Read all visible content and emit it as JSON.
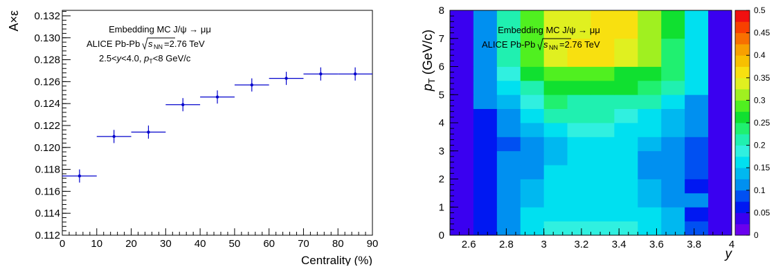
{
  "chart_data": [
    {
      "type": "scatter",
      "xlabel": "Centrality (%)",
      "ylabel": "A×ε",
      "xlim": [
        0,
        90
      ],
      "ylim": [
        0.112,
        0.1325
      ],
      "xticks": [
        "0",
        "10",
        "20",
        "30",
        "40",
        "50",
        "60",
        "70",
        "80",
        "90"
      ],
      "yticks": [
        "0.112",
        "0.114",
        "0.116",
        "0.118",
        "0.120",
        "0.122",
        "0.124",
        "0.126",
        "0.128",
        "0.130",
        "0.132"
      ],
      "annotations": [
        "Embedding MC J/ψ → μμ",
        "ALICE Pb-Pb √s_NN=2.76 TeV",
        "2.5<y<4.0, p_T<8 GeV/c"
      ],
      "points": [
        {
          "x": 5,
          "xlo": 0,
          "xhi": 10,
          "y": 0.1174,
          "err": 0.0006
        },
        {
          "x": 15,
          "xlo": 10,
          "xhi": 20,
          "y": 0.121,
          "err": 0.0006
        },
        {
          "x": 25,
          "xlo": 20,
          "xhi": 30,
          "y": 0.1214,
          "err": 0.0006
        },
        {
          "x": 35,
          "xlo": 30,
          "xhi": 40,
          "y": 0.1239,
          "err": 0.0006
        },
        {
          "x": 45,
          "xlo": 40,
          "xhi": 50,
          "y": 0.1246,
          "err": 0.0006
        },
        {
          "x": 55,
          "xlo": 50,
          "xhi": 60,
          "y": 0.1257,
          "err": 0.0006
        },
        {
          "x": 65,
          "xlo": 60,
          "xhi": 70,
          "y": 0.1263,
          "err": 0.0006
        },
        {
          "x": 75,
          "xlo": 70,
          "xhi": 80,
          "y": 0.1267,
          "err": 0.0006
        },
        {
          "x": 85,
          "xlo": 80,
          "xhi": 90,
          "y": 0.1267,
          "err": 0.0006
        }
      ],
      "marker_color": "#0000cc"
    },
    {
      "type": "heatmap",
      "xlabel": "y",
      "ylabel": "p_T (GeV/c)",
      "xlim": [
        2.5,
        4.0
      ],
      "ylim": [
        0,
        8
      ],
      "xticks": [
        "2.6",
        "2.8",
        "3",
        "3.2",
        "3.4",
        "3.6",
        "3.8",
        "4"
      ],
      "yticks": [
        "0",
        "1",
        "2",
        "3",
        "4",
        "5",
        "6",
        "7",
        "8"
      ],
      "annotations": [
        "Embedding MC J/ψ → μμ",
        "ALICE Pb-Pb √s_NN=2.76 TeV"
      ],
      "x_edges": [
        2.5,
        2.625,
        2.75,
        2.875,
        3.0,
        3.125,
        3.25,
        3.375,
        3.5,
        3.625,
        3.75,
        3.875,
        4.0
      ],
      "y_edges": [
        0,
        0.5,
        1,
        1.5,
        2,
        2.5,
        3,
        3.5,
        4,
        4.5,
        5,
        5.5,
        6,
        7,
        8
      ],
      "z": [
        [
          0.04,
          0.06,
          0.12,
          0.16,
          0.18,
          0.19,
          0.19,
          0.18,
          0.15,
          0.13,
          0.08,
          0.04
        ],
        [
          0.04,
          0.07,
          0.1,
          0.15,
          0.17,
          0.17,
          0.17,
          0.17,
          0.15,
          0.13,
          0.07,
          0.04
        ],
        [
          0.04,
          0.07,
          0.1,
          0.13,
          0.15,
          0.15,
          0.15,
          0.15,
          0.13,
          0.11,
          0.1,
          0.04
        ],
        [
          0.04,
          0.07,
          0.1,
          0.13,
          0.15,
          0.15,
          0.15,
          0.15,
          0.13,
          0.11,
          0.07,
          0.04
        ],
        [
          0.04,
          0.07,
          0.1,
          0.12,
          0.15,
          0.15,
          0.15,
          0.15,
          0.12,
          0.11,
          0.08,
          0.04
        ],
        [
          0.04,
          0.07,
          0.1,
          0.12,
          0.14,
          0.15,
          0.15,
          0.15,
          0.12,
          0.11,
          0.08,
          0.04
        ],
        [
          0.04,
          0.07,
          0.09,
          0.12,
          0.14,
          0.16,
          0.16,
          0.15,
          0.14,
          0.12,
          0.08,
          0.04
        ],
        [
          0.04,
          0.07,
          0.1,
          0.14,
          0.17,
          0.18,
          0.18,
          0.17,
          0.16,
          0.13,
          0.1,
          0.04
        ],
        [
          0.04,
          0.07,
          0.12,
          0.15,
          0.21,
          0.2,
          0.2,
          0.19,
          0.17,
          0.14,
          0.11,
          0.04
        ],
        [
          0.04,
          0.1,
          0.14,
          0.18,
          0.24,
          0.22,
          0.22,
          0.22,
          0.2,
          0.16,
          0.11,
          0.04
        ],
        [
          0.04,
          0.1,
          0.17,
          0.22,
          0.26,
          0.27,
          0.26,
          0.25,
          0.23,
          0.2,
          0.15,
          0.04
        ],
        [
          0.04,
          0.11,
          0.18,
          0.25,
          0.29,
          0.29,
          0.28,
          0.27,
          0.26,
          0.24,
          0.16,
          0.04
        ],
        [
          0.04,
          0.12,
          0.2,
          0.29,
          0.34,
          0.35,
          0.35,
          0.33,
          0.3,
          0.23,
          0.16,
          0.04
        ],
        [
          0.04,
          0.12,
          0.21,
          0.29,
          0.33,
          0.34,
          0.35,
          0.35,
          0.3,
          0.25,
          0.17,
          0.04
        ]
      ],
      "zlim": [
        0,
        0.5
      ],
      "colorbar_ticks": [
        "0",
        "0.05",
        "0.1",
        "0.15",
        "0.2",
        "0.25",
        "0.3",
        "0.35",
        "0.4",
        "0.45",
        "0.5"
      ]
    }
  ]
}
